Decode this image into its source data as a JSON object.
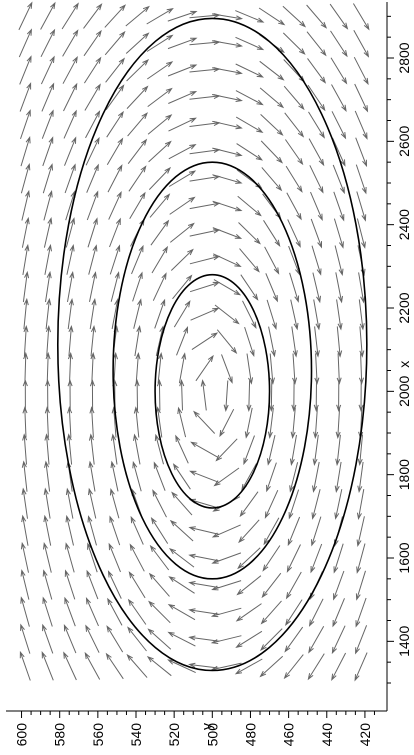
{
  "chart_data": {
    "type": "vector-field",
    "orientation": "rotated-90-ccw",
    "title": "",
    "xlabel": "x",
    "ylabel": "y",
    "xlim": [
      1240,
      2920
    ],
    "ylim": [
      410,
      605
    ],
    "x_ticks": [
      1400,
      1600,
      1800,
      2000,
      2200,
      2400,
      2600,
      2800
    ],
    "x_tick_labels": [
      "1400",
      "1600",
      "1800",
      "2000",
      "2200",
      "2400",
      "2600",
      "2800"
    ],
    "y_ticks": [
      420,
      440,
      460,
      480,
      500,
      520,
      540,
      560,
      580,
      600
    ],
    "y_tick_labels": [
      "420",
      "440",
      "460",
      "480",
      "500",
      "520",
      "540",
      "560",
      "580",
      "600"
    ],
    "field_center": {
      "x": 2000,
      "y": 500
    },
    "field_grid": {
      "x_start": 1340,
      "x_end": 2900,
      "x_count": 25,
      "y_start": 422,
      "y_end": 598,
      "y_count": 16
    },
    "contours": [
      {
        "x_min": 1720,
        "x_max": 2280,
        "y_min": 470,
        "y_max": 530
      },
      {
        "x_min": 1550,
        "x_max": 2550,
        "y_min": 448,
        "y_max": 552
      },
      {
        "x_min": 1330,
        "x_max": 2895,
        "y_min": 419,
        "y_max": 581
      }
    ],
    "grid": false,
    "colors": {
      "arrows": "#666666",
      "contours": "#000000",
      "axes": "#000000"
    }
  }
}
